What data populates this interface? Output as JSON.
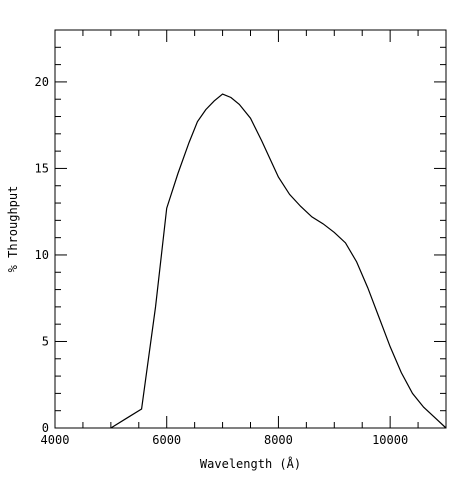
{
  "chart_data": {
    "type": "line",
    "title": "",
    "xlabel": "Wavelength (Å)",
    "ylabel": "% Throughput",
    "xlim": [
      4000,
      11000
    ],
    "ylim": [
      0,
      23
    ],
    "xticks_major": [
      4000,
      6000,
      8000,
      10000
    ],
    "xticks_minor_step": 500,
    "yticks_major": [
      0,
      5,
      10,
      15,
      20
    ],
    "yticks_minor_step": 1,
    "grid": false,
    "line_color": "#000000",
    "series": [
      {
        "x": [
          5000,
          5550,
          5800,
          6000,
          6200,
          6400,
          6550,
          6700,
          6850,
          7000,
          7150,
          7300,
          7500,
          7700,
          7900,
          8000,
          8200,
          8400,
          8600,
          8800,
          9000,
          9200,
          9400,
          9600,
          9800,
          10000,
          10200,
          10400,
          10600,
          10800,
          11000
        ],
        "y": [
          0.0,
          1.1,
          7.0,
          12.7,
          14.7,
          16.5,
          17.7,
          18.4,
          18.9,
          19.3,
          19.1,
          18.7,
          17.9,
          16.6,
          15.2,
          14.5,
          13.5,
          12.8,
          12.2,
          11.8,
          11.3,
          10.7,
          9.6,
          8.1,
          6.4,
          4.7,
          3.2,
          2.0,
          1.2,
          0.6,
          0.0
        ]
      }
    ]
  }
}
